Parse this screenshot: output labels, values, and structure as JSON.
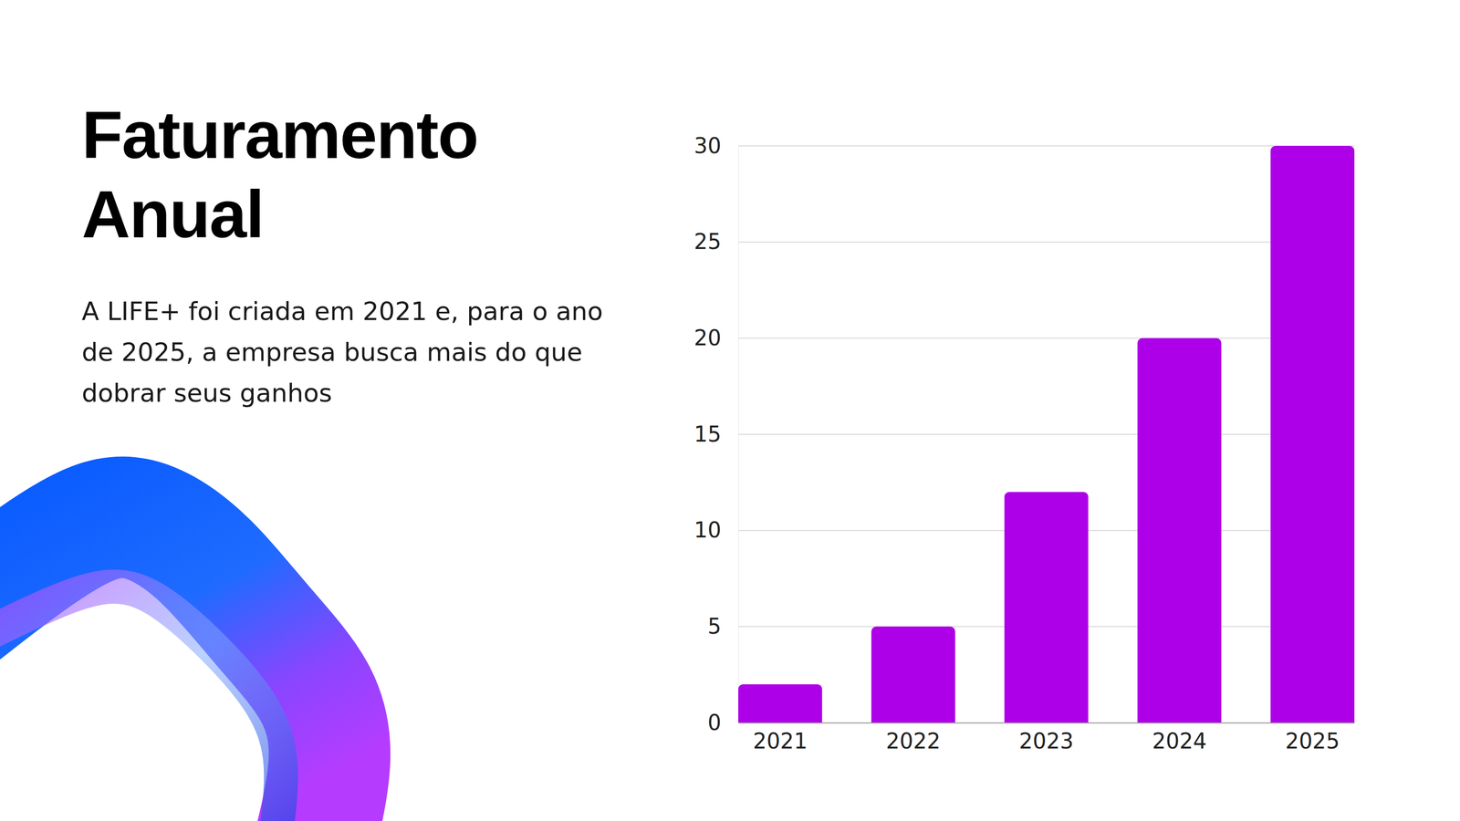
{
  "chart_data": {
    "type": "bar",
    "title": "Faturamento Anual",
    "subtitle": "A LIFE+ foi criada em 2021 e, para o ano de 2025, a empresa busca mais do que dobrar seus ganhos",
    "categories": [
      "2021",
      "2022",
      "2023",
      "2024",
      "2025"
    ],
    "values": [
      2,
      5,
      12,
      20,
      30
    ],
    "color": "#ae00e8",
    "ylim": [
      0,
      30
    ],
    "yticks": [
      0,
      5,
      10,
      15,
      20,
      25,
      30
    ],
    "grid": true
  }
}
